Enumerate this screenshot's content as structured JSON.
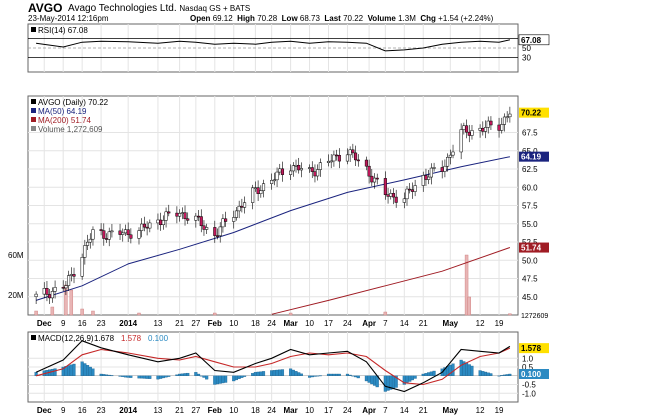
{
  "header": {
    "ticker": "AVGO",
    "company": "Avago Technologies Ltd.",
    "exchange": "Nasdaq GS + BATS",
    "datetime": "23-May-2014 12:16pm",
    "open_label": "Open",
    "open": "69.12",
    "high_label": "High",
    "high": "70.28",
    "low_label": "Low",
    "low": "68.73",
    "last_label": "Last",
    "last": "70.22",
    "volume_label": "Volume",
    "volume": "1.3M",
    "chg_label": "Chg",
    "chg": "+1.54 (+2.24%)"
  },
  "chart_data": [
    {
      "type": "line",
      "panel": "rsi",
      "legend": "RSI(14) 67.08",
      "ylim": [
        0,
        100
      ],
      "ticks": [
        "70",
        "50",
        "30"
      ],
      "tick_values": [
        70,
        50,
        30
      ],
      "last_value_label": "67.08",
      "x": [
        "2013-11-29",
        "2013-12-09",
        "2013-12-16",
        "2013-12-23",
        "2014-01-02",
        "2014-01-13",
        "2014-01-21",
        "2014-01-27",
        "2014-02-03",
        "2014-02-10",
        "2014-02-18",
        "2014-02-24",
        "2014-03-03",
        "2014-03-10",
        "2014-03-17",
        "2014-03-24",
        "2014-03-31",
        "2014-04-07",
        "2014-04-14",
        "2014-04-21",
        "2014-04-28",
        "2014-05-05",
        "2014-05-12",
        "2014-05-19",
        "2014-05-23"
      ],
      "values": [
        60,
        52,
        62,
        64,
        63,
        60,
        64,
        62,
        58,
        60,
        58,
        62,
        64,
        60,
        63,
        62,
        60,
        44,
        46,
        50,
        58,
        62,
        64,
        62,
        67.08
      ]
    },
    {
      "type": "candlestick",
      "panel": "price",
      "legend": [
        {
          "name": "AVGO (Daily) 70.22",
          "color": "#000000"
        },
        {
          "name": "MA(50) 64.19",
          "color": "#1a237e"
        },
        {
          "name": "MA(200) 51.74",
          "color": "#a01c24"
        },
        {
          "name": "Volume 1,272,609",
          "color": "#888888"
        }
      ],
      "ylim": [
        42.5,
        72.5
      ],
      "ticks": [
        "67.5",
        "65.0",
        "62.5",
        "60.0",
        "57.5",
        "55.0",
        "52.5",
        "50.0",
        "47.5",
        "45.0"
      ],
      "tick_values": [
        67.5,
        65,
        62.5,
        60,
        57.5,
        55,
        52.5,
        50,
        47.5,
        45
      ],
      "last_value_labels": [
        {
          "text": "70.22",
          "value": 70.22,
          "color": "#ffe000"
        },
        {
          "text": "64.19",
          "value": 64.19,
          "color": "#1a237e"
        },
        {
          "text": "51.74",
          "value": 51.74,
          "color": "#a01c24"
        }
      ],
      "x_labels": [
        "Dec",
        "9",
        "16",
        "23",
        "2014",
        "13",
        "21",
        "27",
        "Feb",
        "10",
        "18",
        "24",
        "Mar",
        "10",
        "17",
        "24",
        "Apr",
        "7",
        "14",
        "21",
        "May",
        "12",
        "19"
      ],
      "series": [
        {
          "name": "Close",
          "x": [
            "2013-11-29",
            "2013-12-05",
            "2013-12-10",
            "2013-12-16",
            "2013-12-20",
            "2013-12-27",
            "2014-01-06",
            "2014-01-13",
            "2014-01-21",
            "2014-01-27",
            "2014-02-03",
            "2014-02-10",
            "2014-02-18",
            "2014-02-24",
            "2014-03-03",
            "2014-03-10",
            "2014-03-17",
            "2014-03-24",
            "2014-03-31",
            "2014-04-07",
            "2014-04-14",
            "2014-04-21",
            "2014-04-28",
            "2014-05-05",
            "2014-05-12",
            "2014-05-19",
            "2014-05-23"
          ],
          "values": [
            45.0,
            45.8,
            46.5,
            50.8,
            53.8,
            53.5,
            54.0,
            55.5,
            56.5,
            55.5,
            53.5,
            56.5,
            59.5,
            61.0,
            63.0,
            62.0,
            63.5,
            65.0,
            62.5,
            59.0,
            58.5,
            61.5,
            62.5,
            67.5,
            68.0,
            68.5,
            70.22
          ]
        },
        {
          "name": "MA(50)",
          "x": [
            "2013-11-29",
            "2013-12-16",
            "2014-01-02",
            "2014-01-21",
            "2014-02-10",
            "2014-03-03",
            "2014-03-24",
            "2014-04-14",
            "2014-05-05",
            "2014-05-23"
          ],
          "values": [
            44.5,
            46.5,
            49.5,
            51.5,
            53.8,
            56.8,
            59.3,
            61.0,
            62.8,
            64.19
          ]
        },
        {
          "name": "MA(200)",
          "x": [
            "2014-02-24",
            "2014-03-17",
            "2014-04-07",
            "2014-04-28",
            "2014-05-23"
          ],
          "values": [
            42.6,
            44.5,
            46.5,
            48.5,
            51.74
          ]
        }
      ],
      "volume": {
        "ticks": [
          "60M",
          "20M"
        ],
        "tick_values": [
          60,
          20
        ],
        "last_value_label": "1272609",
        "x": [
          "2013-11-29",
          "2013-12-05",
          "2013-12-10",
          "2013-12-12",
          "2013-12-16",
          "2013-12-20",
          "2014-01-06",
          "2014-02-03",
          "2014-03-03",
          "2014-04-07",
          "2014-05-07",
          "2014-05-08",
          "2014-05-23"
        ],
        "values": [
          4,
          8,
          30,
          25,
          6,
          4,
          2,
          2,
          2,
          3,
          60,
          18,
          1.3
        ]
      }
    },
    {
      "type": "line",
      "panel": "macd",
      "legend": [
        {
          "name": "MACD(12,26,9)",
          "text": "1.678",
          "color": "#000000"
        },
        {
          "name": "signal",
          "text": "1.578",
          "color": "#c62828"
        },
        {
          "name": "histogram",
          "text": "0.100",
          "color": "#2b8ac2"
        }
      ],
      "ylim": [
        -1.5,
        2.5
      ],
      "ticks": [
        "1.0",
        "0.5",
        "-0.5",
        "-1.0"
      ],
      "tick_values": [
        1.0,
        0.5,
        -0.5,
        -1.0
      ],
      "last_value_labels": [
        {
          "text": "1.578",
          "value": 1.578,
          "color": "#ffe000"
        },
        {
          "text": "0.100",
          "value": 0.1,
          "color": "#2b8ac2"
        }
      ],
      "x_labels": [
        "Dec",
        "9",
        "16",
        "23",
        "2014",
        "13",
        "21",
        "27",
        "Feb",
        "10",
        "18",
        "24",
        "Mar",
        "10",
        "17",
        "24",
        "Apr",
        "7",
        "14",
        "21",
        "May",
        "12",
        "19"
      ],
      "x": [
        "2013-11-29",
        "2013-12-09",
        "2013-12-16",
        "2013-12-23",
        "2014-01-02",
        "2014-01-13",
        "2014-01-21",
        "2014-01-27",
        "2014-02-03",
        "2014-02-10",
        "2014-02-18",
        "2014-02-24",
        "2014-03-03",
        "2014-03-10",
        "2014-03-17",
        "2014-03-24",
        "2014-03-31",
        "2014-04-07",
        "2014-04-14",
        "2014-04-21",
        "2014-04-28",
        "2014-05-05",
        "2014-05-12",
        "2014-05-19",
        "2014-05-23"
      ],
      "series": [
        {
          "name": "MACD",
          "values": [
            0.2,
            0.9,
            2.0,
            1.6,
            1.2,
            0.8,
            1.0,
            1.3,
            0.3,
            0.2,
            0.7,
            1.0,
            1.5,
            1.2,
            1.3,
            1.4,
            0.8,
            -0.6,
            -0.9,
            -0.4,
            0.2,
            1.5,
            1.4,
            1.3,
            1.678
          ]
        },
        {
          "name": "Signal",
          "values": [
            0.0,
            0.4,
            1.2,
            1.5,
            1.3,
            1.0,
            0.9,
            1.1,
            0.8,
            0.5,
            0.5,
            0.7,
            1.1,
            1.3,
            1.2,
            1.3,
            1.1,
            0.3,
            -0.4,
            -0.5,
            -0.2,
            0.6,
            1.1,
            1.3,
            1.578
          ]
        },
        {
          "name": "Histogram",
          "values": [
            0.2,
            0.5,
            0.8,
            0.1,
            -0.1,
            -0.2,
            0.1,
            0.2,
            -0.5,
            -0.3,
            0.2,
            0.3,
            0.4,
            -0.1,
            0.1,
            0.1,
            -0.3,
            -0.9,
            -0.5,
            0.1,
            0.4,
            0.9,
            0.3,
            0.0,
            0.1
          ]
        }
      ]
    }
  ]
}
